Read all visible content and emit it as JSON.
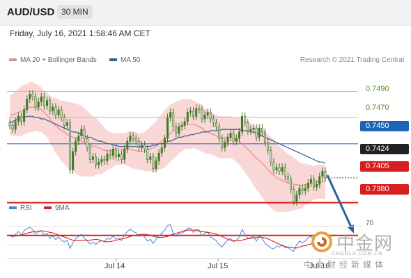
{
  "header": {
    "symbol": "AUD/USD",
    "timeframe": "30 MIN"
  },
  "datetime": "Friday, July 16, 2021 1:58:46 AM CET",
  "legend": {
    "ma20": {
      "label": "MA 20 + Bollinger Bands",
      "color": "#e88b8b"
    },
    "ma50": {
      "label": "MA 50",
      "color": "#2f5f8f"
    },
    "copyright": "Research © 2021 Trading Central"
  },
  "rsi_legend": {
    "rsi": {
      "label": "RSI",
      "color": "#4a86c8"
    },
    "ma9": {
      "label": "9MA",
      "color": "#d42020"
    }
  },
  "colors": {
    "candle_up": "#3f7a24",
    "candle_down": "#d0d0d0",
    "candle_outline": "#3f7a24",
    "bollinger_fill": "#f7caca",
    "ma20": "#e88b8b",
    "ma50": "#2f5f8f",
    "support": "#d81e1e",
    "pivot": "#1e64b4",
    "resistance": "#a6cf7e",
    "arrow": "#2c5f9a"
  },
  "levels": {
    "resistance_2": "0.7490",
    "resistance_1": "0.7470",
    "pivot": "0.7450",
    "last": "0.7424",
    "support_1": "0.7405",
    "support_2": "0.7380"
  },
  "rsi_level": "70",
  "x_labels": [
    "Jul 14",
    "Jul 15",
    "Jul 16"
  ],
  "watermark": {
    "name": "中金网",
    "url": "CNGOLD.COM.CN",
    "sub": "中金财经新媒体"
  },
  "chart_data": {
    "type": "candlestick",
    "symbol": "AUD/USD",
    "timeframe": "30 MIN",
    "x_ticks": [
      "Jul 14",
      "Jul 15",
      "Jul 16"
    ],
    "levels": [
      {
        "value": 0.749,
        "kind": "resistance"
      },
      {
        "value": 0.747,
        "kind": "resistance"
      },
      {
        "value": 0.745,
        "kind": "pivot"
      },
      {
        "value": 0.7424,
        "kind": "last"
      },
      {
        "value": 0.7405,
        "kind": "support"
      },
      {
        "value": 0.738,
        "kind": "support"
      }
    ],
    "ylim": [
      0.7365,
      0.752
    ],
    "close": [
      0.7464,
      0.7461,
      0.7467,
      0.7471,
      0.7467,
      0.7476,
      0.7484,
      0.7488,
      0.7486,
      0.7478,
      0.7482,
      0.7486,
      0.7479,
      0.7483,
      0.7475,
      0.7478,
      0.7472,
      0.7476,
      0.747,
      0.7464,
      0.7466,
      0.743,
      0.7444,
      0.7452,
      0.7456,
      0.7461,
      0.7454,
      0.7447,
      0.7438,
      0.744,
      0.7434,
      0.7436,
      0.7438,
      0.7437,
      0.7442,
      0.7441,
      0.7446,
      0.744,
      0.7442,
      0.7438,
      0.7446,
      0.7452,
      0.7456,
      0.7454,
      0.7452,
      0.7447,
      0.7449,
      0.7446,
      0.7438,
      0.744,
      0.7431,
      0.7437,
      0.7443,
      0.7447,
      0.7454,
      0.747,
      0.7474,
      0.7463,
      0.7458,
      0.7463,
      0.7464,
      0.7467,
      0.7474,
      0.7475,
      0.7471,
      0.7477,
      0.7476,
      0.7469,
      0.7472,
      0.7474,
      0.7469,
      0.7466,
      0.7463,
      0.7454,
      0.7447,
      0.7451,
      0.7455,
      0.7458,
      0.7452,
      0.7454,
      0.7459,
      0.7471,
      0.7466,
      0.746,
      0.7461,
      0.7462,
      0.7455,
      0.7462,
      0.7459,
      0.7451,
      0.7445,
      0.7436,
      0.743,
      0.7432,
      0.7429,
      0.7432,
      0.7425,
      0.7423,
      0.7415,
      0.7406,
      0.7411,
      0.7416,
      0.7414,
      0.7416,
      0.742,
      0.7423,
      0.7417,
      0.7419,
      0.7425,
      0.7429,
      0.7424
    ],
    "rsi": [
      50,
      47,
      53,
      59,
      51,
      61,
      65,
      68,
      63,
      54,
      58,
      61,
      51,
      55,
      44,
      49,
      41,
      47,
      40,
      36,
      40,
      22,
      34,
      44,
      48,
      53,
      44,
      39,
      32,
      36,
      31,
      36,
      39,
      37,
      44,
      42,
      49,
      42,
      45,
      39,
      52,
      59,
      64,
      59,
      56,
      48,
      52,
      47,
      38,
      42,
      33,
      42,
      50,
      55,
      62,
      72,
      74,
      55,
      48,
      55,
      56,
      59,
      66,
      66,
      57,
      64,
      62,
      50,
      55,
      58,
      47,
      43,
      39,
      30,
      25,
      34,
      40,
      44,
      36,
      40,
      47,
      64,
      53,
      44,
      46,
      48,
      38,
      49,
      44,
      33,
      28,
      23,
      21,
      27,
      25,
      30,
      24,
      24,
      19,
      16,
      30,
      38,
      35,
      38,
      45,
      49,
      39,
      42,
      51,
      57,
      49
    ],
    "rsi_ma9": [
      50,
      49,
      49,
      50,
      51,
      53,
      55,
      57,
      58,
      59,
      60,
      60,
      60,
      59,
      57,
      56,
      54,
      51,
      49,
      47,
      45,
      42,
      40,
      39,
      39,
      40,
      40,
      40,
      40,
      41,
      42,
      41,
      39,
      37,
      36,
      37,
      38,
      40,
      41,
      43,
      44,
      46,
      48,
      50,
      51,
      52,
      53,
      53,
      52,
      51,
      49,
      47,
      46,
      46,
      47,
      48,
      51,
      53,
      55,
      57,
      59,
      61,
      62,
      62,
      62,
      61,
      60,
      59,
      58,
      57,
      56,
      55,
      53,
      51,
      48,
      45,
      42,
      40,
      39,
      39,
      39,
      40,
      42,
      43,
      44,
      45,
      46,
      47,
      46,
      45,
      43,
      40,
      37,
      34,
      31,
      28,
      26,
      25,
      24,
      23,
      23,
      25,
      27,
      28,
      30,
      32,
      34,
      36,
      38,
      40,
      42
    ],
    "ma20": [
      0.7472,
      0.7472,
      0.7473,
      0.7474,
      0.7475,
      0.7476,
      0.7477,
      0.7478,
      0.7478,
      0.7478,
      0.7477,
      0.7476,
      0.7474,
      0.7472,
      0.7469,
      0.7466,
      0.7464,
      0.7462,
      0.746,
      0.7459,
      0.7457,
      0.7456,
      0.7455,
      0.7454,
      0.7453,
      0.7452,
      0.7451,
      0.745,
      0.7449,
      0.7448,
      0.7448,
      0.7447,
      0.7446,
      0.7445,
      0.7445,
      0.7445,
      0.7445,
      0.7446,
      0.7446,
      0.7446,
      0.7446,
      0.7446,
      0.7446,
      0.7445,
      0.7445,
      0.7444,
      0.7444,
      0.7444,
      0.7445,
      0.7446,
      0.7447,
      0.7448,
      0.745,
      0.7452,
      0.7454,
      0.7456,
      0.7458,
      0.746,
      0.7461,
      0.7463,
      0.7464,
      0.7465,
      0.7465,
      0.7465,
      0.7465,
      0.7464,
      0.7463,
      0.7462,
      0.746,
      0.7459,
      0.7458,
      0.7457,
      0.7456,
      0.7455,
      0.7455,
      0.7455,
      0.7455,
      0.7455,
      0.7454,
      0.7453,
      0.7452,
      0.745,
      0.7448,
      0.7446,
      0.7444,
      0.7441,
      0.7439,
      0.7437,
      0.7435,
      0.7433,
      0.743,
      0.7428,
      0.7426,
      0.7424,
      0.7423,
      0.7422,
      0.7421,
      0.742,
      0.742,
      0.7419,
      0.7419,
      0.7418,
      0.7418,
      0.7419,
      0.7419,
      0.742,
      0.742,
      0.7421,
      0.7421,
      0.7421,
      0.7421
    ],
    "ma50": [
      0.7466,
      0.7467,
      0.7468,
      0.7469,
      0.747,
      0.747,
      0.7471,
      0.7471,
      0.7471,
      0.747,
      0.747,
      0.7469,
      0.7469,
      0.7468,
      0.7467,
      0.7466,
      0.7465,
      0.7464,
      0.7463,
      0.7462,
      0.7461,
      0.746,
      0.7459,
      0.7459,
      0.7458,
      0.7457,
      0.7456,
      0.7455,
      0.7455,
      0.7454,
      0.7453,
      0.7452,
      0.7452,
      0.7451,
      0.745,
      0.745,
      0.7449,
      0.7449,
      0.7448,
      0.7448,
      0.7448,
      0.7448,
      0.7448,
      0.7448,
      0.7448,
      0.7448,
      0.7448,
      0.7448,
      0.7448,
      0.7448,
      0.7449,
      0.7449,
      0.745,
      0.745,
      0.7451,
      0.7452,
      0.7452,
      0.7453,
      0.7454,
      0.7455,
      0.7455,
      0.7456,
      0.7456,
      0.7457,
      0.7457,
      0.7458,
      0.7458,
      0.7459,
      0.7459,
      0.7459,
      0.746,
      0.746,
      0.746,
      0.746,
      0.7461,
      0.7461,
      0.7461,
      0.7461,
      0.7461,
      0.7461,
      0.7461,
      0.746,
      0.746,
      0.746,
      0.7459,
      0.7459,
      0.7458,
      0.7457,
      0.7456,
      0.7455,
      0.7454,
      0.7453,
      0.7452,
      0.7451,
      0.745,
      0.7449,
      0.7448,
      0.7447,
      0.7446,
      0.7445,
      0.7444,
      0.7443,
      0.7442,
      0.7441,
      0.744,
      0.7439,
      0.7438,
      0.7437,
      0.7436,
      0.7436,
      0.7435
    ],
    "bb_halfwidth": [
      0.0015,
      0.0016,
      0.0017,
      0.0018,
      0.0019,
      0.0019,
      0.0019,
      0.0019,
      0.0019,
      0.0018,
      0.0018,
      0.0017,
      0.0017,
      0.0017,
      0.0018,
      0.0019,
      0.0021,
      0.0022,
      0.0023,
      0.0024,
      0.0025,
      0.0026,
      0.0026,
      0.0027,
      0.0027,
      0.0027,
      0.0026,
      0.0025,
      0.0024,
      0.0023,
      0.0022,
      0.002,
      0.0019,
      0.0017,
      0.0015,
      0.0014,
      0.0013,
      0.0012,
      0.0012,
      0.0012,
      0.0012,
      0.0013,
      0.0014,
      0.0014,
      0.0014,
      0.0014,
      0.0014,
      0.0015,
      0.0016,
      0.0017,
      0.0018,
      0.0019,
      0.002,
      0.0021,
      0.0022,
      0.0022,
      0.0022,
      0.0021,
      0.0021,
      0.002,
      0.002,
      0.0019,
      0.0019,
      0.0019,
      0.0018,
      0.0018,
      0.0018,
      0.0018,
      0.0017,
      0.0017,
      0.0016,
      0.0016,
      0.0016,
      0.0016,
      0.0016,
      0.0016,
      0.0016,
      0.0016,
      0.0016,
      0.0017,
      0.0018,
      0.0019,
      0.002,
      0.0021,
      0.0022,
      0.0023,
      0.0024,
      0.0025,
      0.0026,
      0.0027,
      0.0027,
      0.0027,
      0.0027,
      0.0026,
      0.0025,
      0.0024,
      0.0023,
      0.0022,
      0.0021,
      0.002,
      0.0019,
      0.0018,
      0.0017,
      0.0016,
      0.0015,
      0.0014,
      0.0013,
      0.0013,
      0.0013,
      0.0013,
      0.0013
    ],
    "rsi_ylim": [
      0,
      100
    ],
    "rsi_levels": [
      70
    ]
  }
}
